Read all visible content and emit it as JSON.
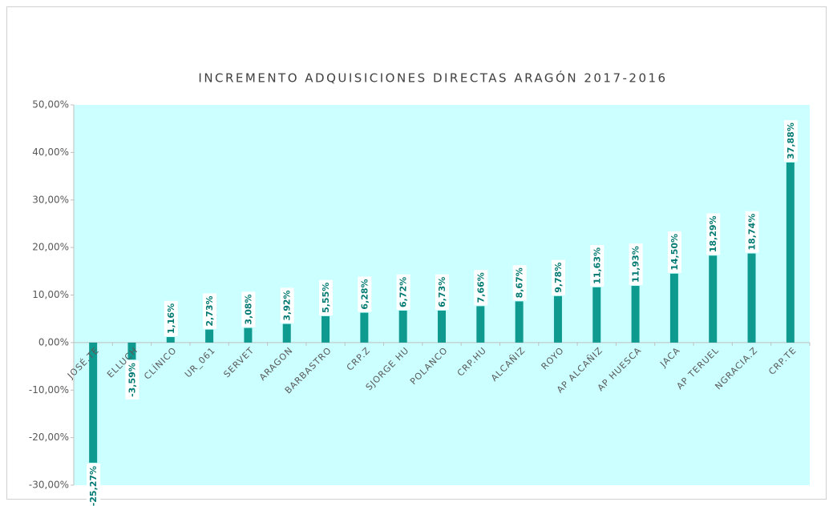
{
  "chart_data": {
    "type": "bar",
    "title": "INCREMENTO ADQUISICIONES DIRECTAS ARAGÓN 2017-2016",
    "categories": [
      "JOSÉ.TE",
      "ELLUCH",
      "CLÍNICO",
      "UR_061",
      "SERVET",
      "ARAGON",
      "BARBASTRO",
      "CRP.Z",
      "SJORGE HU",
      "POLANCO",
      "CRP.HU",
      "ALCAÑIZ",
      "ROYO",
      "AP ALCAÑIZ",
      "AP HUESCA",
      "JACA",
      "AP TERUEL",
      "NGRACIA.Z",
      "CRP.TE"
    ],
    "values": [
      -25.27,
      -3.59,
      1.16,
      2.73,
      3.08,
      3.92,
      5.55,
      6.28,
      6.72,
      6.73,
      7.66,
      8.67,
      9.78,
      11.63,
      11.93,
      14.5,
      18.29,
      18.74,
      37.88
    ],
    "value_labels": [
      "-25,27%",
      "-3,59%",
      "1,16%",
      "2,73%",
      "3,08%",
      "3,92%",
      "5,55%",
      "6,28%",
      "6,72%",
      "6,73%",
      "7,66%",
      "8,67%",
      "9,78%",
      "11,63%",
      "11,93%",
      "14,50%",
      "18,29%",
      "18,74%",
      "37,88%"
    ],
    "color": "#0e9a8f",
    "ylim": [
      -30,
      50
    ],
    "yticks": [
      {
        "value": -30,
        "label": "-30,00%"
      },
      {
        "value": -20,
        "label": "-20,00%"
      },
      {
        "value": -10,
        "label": "-10,00%"
      },
      {
        "value": 0,
        "label": "0,00%"
      },
      {
        "value": 10,
        "label": "10,00%"
      },
      {
        "value": 20,
        "label": "20,00%"
      },
      {
        "value": 30,
        "label": "30,00%"
      },
      {
        "value": 40,
        "label": "40,00%"
      },
      {
        "value": 50,
        "label": "50,00%"
      }
    ],
    "grid": false
  }
}
